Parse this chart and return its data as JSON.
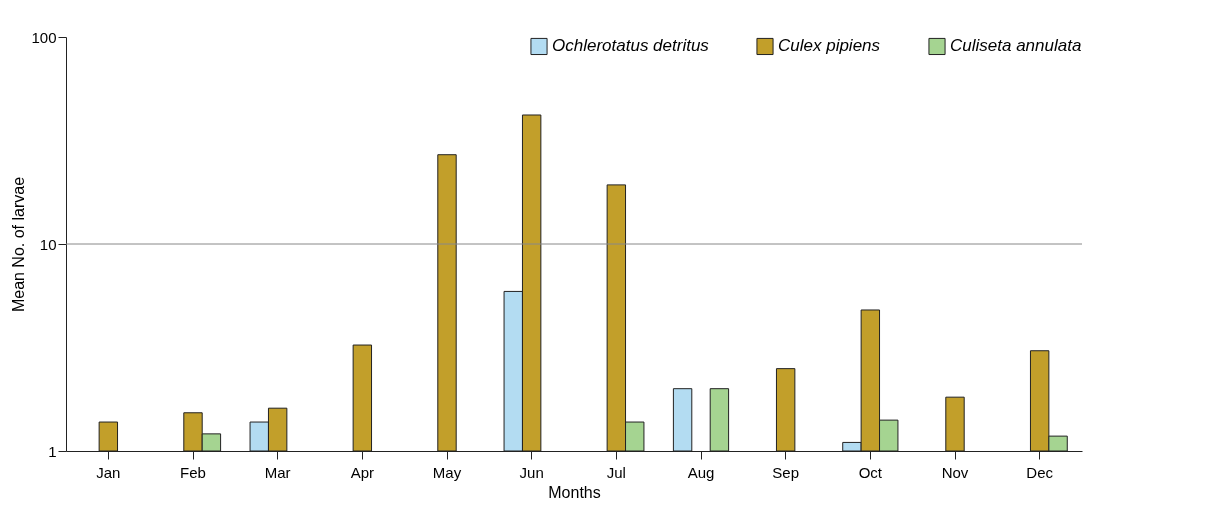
{
  "chart_data": {
    "type": "bar",
    "xlabel": "Months",
    "ylabel": "Mean No. of larvae",
    "categories": [
      "Jan",
      "Feb",
      "Mar",
      "Apr",
      "May",
      "Jun",
      "Jul",
      "Aug",
      "Sep",
      "Oct",
      "Nov",
      "Dec"
    ],
    "series": [
      {
        "name": "Ochlerotatus detritus",
        "color": "#b3dcf2",
        "values": [
          null,
          null,
          1.38,
          null,
          null,
          5.9,
          null,
          2.0,
          null,
          1.1,
          null,
          null
        ]
      },
      {
        "name": "Culex pipiens",
        "color": "#c29f2a",
        "values": [
          1.38,
          1.53,
          1.61,
          3.25,
          27,
          42,
          19.3,
          null,
          2.5,
          4.8,
          1.82,
          3.05
        ]
      },
      {
        "name": "Culiseta annulata",
        "color": "#a5d491",
        "values": [
          null,
          1.21,
          null,
          null,
          null,
          null,
          1.38,
          2.0,
          null,
          1.41,
          null,
          1.18
        ]
      }
    ],
    "log": true,
    "ylim": [
      1,
      100
    ],
    "yticks": [
      1,
      10,
      100
    ],
    "grid": "y",
    "legend": "top right"
  }
}
